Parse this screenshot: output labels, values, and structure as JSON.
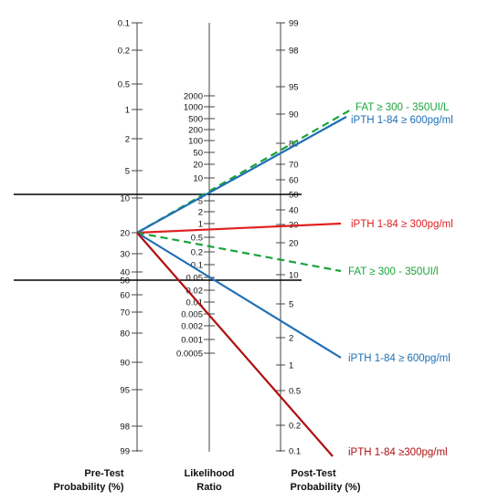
{
  "axes": {
    "pretest": {
      "title_line1": "Pre-Test",
      "title_line2": "Probability (%)",
      "ticks": [
        "0.1",
        "0.2",
        "0.5",
        "1",
        "2",
        "5",
        "10",
        "20",
        "30",
        "40",
        "50",
        "60",
        "70",
        "80",
        "90",
        "95",
        "98",
        "99"
      ]
    },
    "lr": {
      "title_line1": "Likelihood",
      "title_line2": "Ratio",
      "ticks": [
        "2000",
        "1000",
        "500",
        "200",
        "100",
        "50",
        "20",
        "10",
        "5",
        "2",
        "1",
        "0.5",
        "0.2",
        "0.1",
        "0.05",
        "0.02",
        "0.01",
        "0.005",
        "0.002",
        "0.001",
        "0.0005"
      ]
    },
    "posttest": {
      "title_line1": "Post-Test",
      "title_line2": "Probability (%)",
      "ticks": [
        "99",
        "98",
        "95",
        "90",
        "80",
        "70",
        "60",
        "50",
        "40",
        "30",
        "20",
        "10",
        "5",
        "2",
        "1",
        "0.5",
        "0.2",
        "0.1"
      ]
    }
  },
  "lines": [
    {
      "label": "FAT ≥ 300 - 350UI/L",
      "color": "#1aa33a",
      "style": "dashed"
    },
    {
      "label": "iPTH 1-84 ≥ 600pg/ml",
      "color": "#1f6fb5",
      "style": "solid"
    },
    {
      "label": "iPTH 1-84 ≥ 300pg/ml",
      "color": "#e02020",
      "style": "solid"
    },
    {
      "label": "FAT ≥ 300 - 350UI/l",
      "color": "#1aa33a",
      "style": "dashed"
    },
    {
      "label": "iPTH 1-84 ≥ 600pg/ml",
      "color": "#1f6fb5",
      "style": "solid"
    },
    {
      "label": "iPTH 1-84 ≥300pg/ml",
      "color": "#b01010",
      "style": "solid"
    }
  ]
}
